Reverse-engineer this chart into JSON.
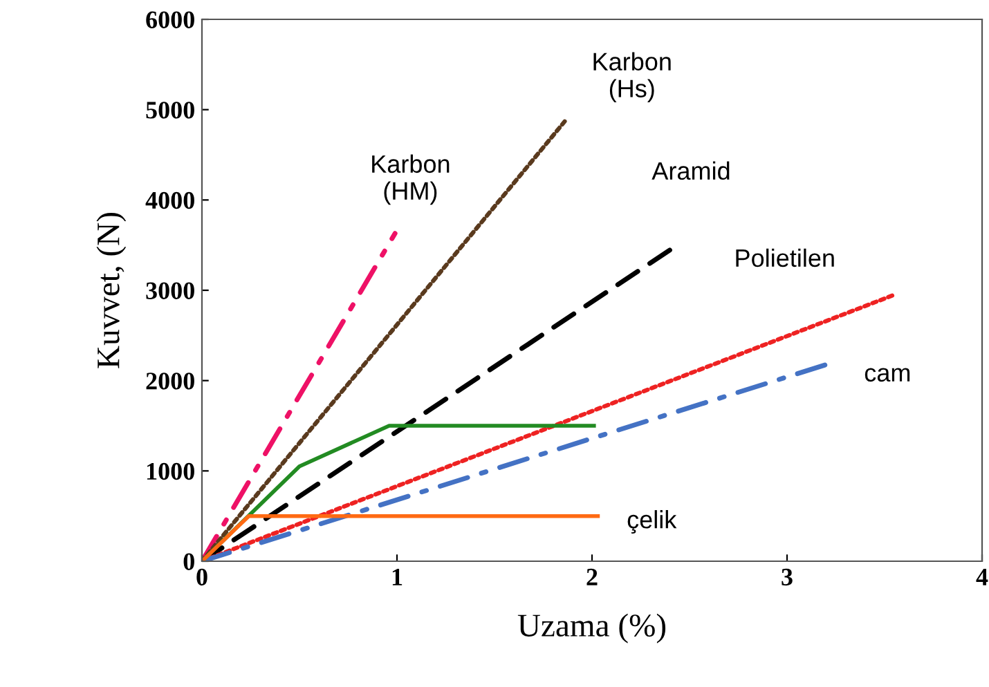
{
  "chart_data": {
    "type": "line",
    "xlabel": "Uzama (%)",
    "ylabel": "Kuvvet, (N)",
    "xlim": [
      0,
      4
    ],
    "ylim": [
      0,
      6000
    ],
    "xticks": [
      0,
      1,
      2,
      3,
      4
    ],
    "yticks": [
      0,
      1000,
      2000,
      3000,
      4000,
      5000,
      6000
    ],
    "grid": false,
    "legend": false,
    "series": [
      {
        "name": "Karbon\n(HM)",
        "color": "#ee1166",
        "line_style": "dashdot",
        "x": [
          0,
          0.99
        ],
        "values": [
          0,
          3630
        ]
      },
      {
        "name": "Karbon\n(Hs)",
        "color": "#5a3a1e",
        "line_style": "dotted",
        "x": [
          0,
          1.86
        ],
        "values": [
          0,
          4870
        ]
      },
      {
        "name": "Aramid",
        "color": "#000000",
        "line_style": "dashed",
        "x": [
          0,
          2.43
        ],
        "values": [
          0,
          3490
        ]
      },
      {
        "name": "Polietilen",
        "color": "#ee2222",
        "line_style": "dotted",
        "x": [
          0,
          3.55
        ],
        "values": [
          0,
          2950
        ]
      },
      {
        "name": "cam",
        "color": "#4472c4",
        "line_style": "dashdot",
        "x": [
          0,
          3.22
        ],
        "values": [
          0,
          2190
        ]
      },
      {
        "color": "#228b22",
        "line_style": "solid",
        "x": [
          0,
          0.5,
          0.96,
          2.01
        ],
        "values": [
          0,
          1050,
          1500,
          1500
        ]
      },
      {
        "name": "çelik",
        "color": "#ff6a13",
        "line_style": "solid",
        "x": [
          0,
          0.24,
          2.03
        ],
        "values": [
          0,
          500,
          500
        ]
      }
    ]
  }
}
